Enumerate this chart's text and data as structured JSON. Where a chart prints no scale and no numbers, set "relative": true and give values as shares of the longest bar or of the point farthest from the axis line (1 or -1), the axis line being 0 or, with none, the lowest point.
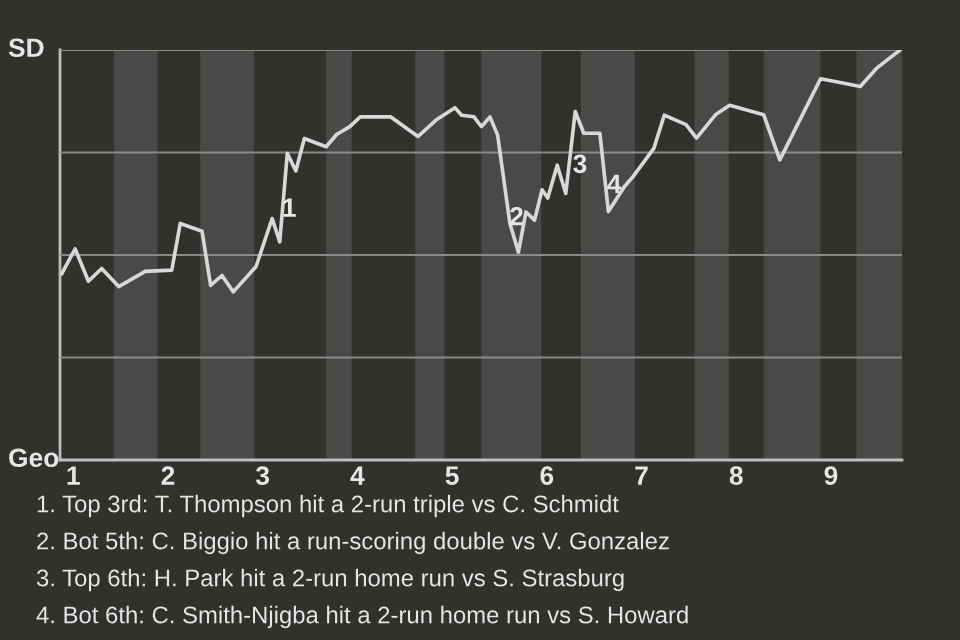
{
  "chart_data": {
    "type": "line",
    "relative": true,
    "xlim": [
      0.86,
      9.75
    ],
    "xticks": [
      1,
      2,
      3,
      4,
      5,
      6,
      7,
      8,
      9
    ],
    "grid": "y",
    "marker": "none",
    "line_style": "solid",
    "series": [
      {
        "color": "#d8d8d8",
        "x": [
          0.88,
          1.02,
          1.16,
          1.3,
          1.48,
          1.76,
          2.04,
          2.13,
          2.36,
          2.45,
          2.57,
          2.69,
          2.93,
          3.1,
          3.18,
          3.26,
          3.35,
          3.44,
          3.67,
          3.78,
          3.92,
          4.03,
          4.35,
          4.64,
          4.83,
          5.03,
          5.1,
          5.23,
          5.31,
          5.4,
          5.48,
          5.61,
          5.7,
          5.78,
          5.87,
          5.95,
          6.01,
          6.11,
          6.2,
          6.3,
          6.39,
          6.56,
          6.65,
          6.82,
          6.91,
          7.13,
          7.24,
          7.47,
          7.58,
          7.78,
          7.93,
          8.29,
          8.46,
          8.89,
          9.07,
          9.31,
          9.48,
          9.73
        ],
        "values": [
          0.455,
          0.515,
          0.436,
          0.467,
          0.423,
          0.46,
          0.463,
          0.577,
          0.558,
          0.426,
          0.45,
          0.41,
          0.472,
          0.589,
          0.532,
          0.748,
          0.705,
          0.784,
          0.764,
          0.794,
          0.813,
          0.837,
          0.837,
          0.789,
          0.829,
          0.859,
          0.841,
          0.837,
          0.813,
          0.837,
          0.793,
          0.577,
          0.507,
          0.605,
          0.585,
          0.659,
          0.639,
          0.719,
          0.65,
          0.85,
          0.797,
          0.797,
          0.606,
          0.667,
          0.691,
          0.76,
          0.841,
          0.818,
          0.785,
          0.842,
          0.865,
          0.842,
          0.732,
          0.93,
          0.922,
          0.911,
          0.955,
          1
        ]
      }
    ],
    "bands": [
      {
        "axis": "x",
        "from": 1.43,
        "to": 1.89,
        "color": "#4a4947"
      },
      {
        "axis": "x",
        "from": 2.34,
        "to": 2.91,
        "color": "#4a4947"
      },
      {
        "axis": "x",
        "from": 3.67,
        "to": 3.94,
        "color": "#4a4947"
      },
      {
        "axis": "x",
        "from": 4.61,
        "to": 4.92,
        "color": "#4a4947"
      },
      {
        "axis": "x",
        "from": 5.31,
        "to": 5.94,
        "color": "#4a4947"
      },
      {
        "axis": "x",
        "from": 6.36,
        "to": 6.93,
        "color": "#4a4947"
      },
      {
        "axis": "x",
        "from": 7.56,
        "to": 7.92,
        "color": "#4a4947"
      },
      {
        "axis": "x",
        "from": 8.29,
        "to": 8.89,
        "color": "#4a4947"
      },
      {
        "axis": "x",
        "from": 9.27,
        "to": 9.75,
        "color": "#4a4947"
      }
    ],
    "annotations": [
      {
        "text": "1",
        "x": 3.28,
        "y": 0.61
      },
      {
        "text": "2",
        "x": 5.68,
        "y": 0.589
      },
      {
        "text": "3",
        "x": 6.35,
        "y": 0.717
      },
      {
        "text": "4",
        "x": 6.71,
        "y": 0.668
      },
      "SD",
      "Geo",
      "1. Top 3rd: T. Thompson hit a 2-run triple vs C. Schmidt",
      "2. Bot 5th: C. Biggio hit a run-scoring double vs V. Gonzalez",
      "3. Top 6th: H. Park hit a 2-run home run vs S. Strasburg",
      "4. Bot 6th: C. Smith-Njigba hit a 2-run home run vs S. Howard"
    ]
  }
}
